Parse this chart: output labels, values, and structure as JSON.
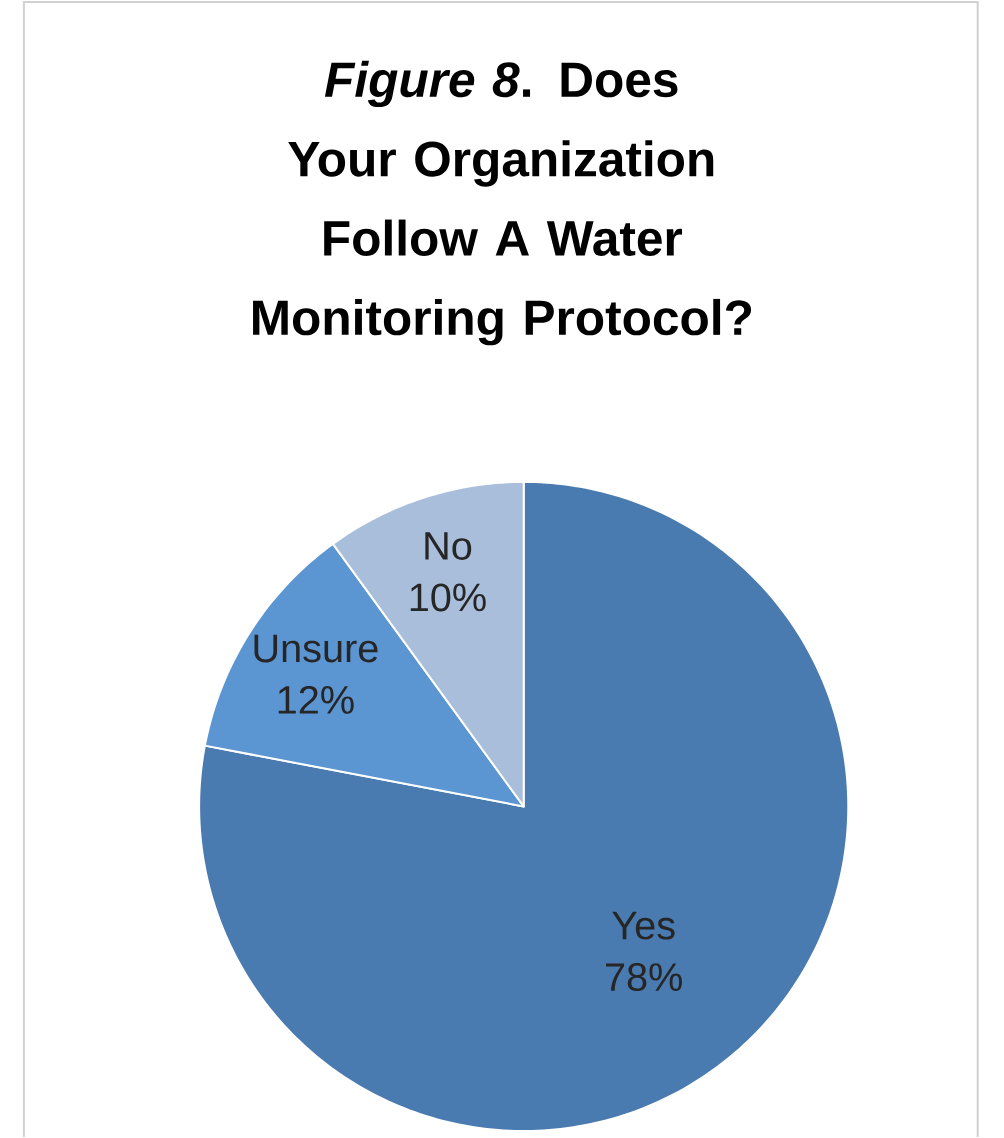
{
  "chart_data": {
    "type": "pie",
    "title": "*Figure 8*. Does Your Organization Follow A Water Monitoring Protocol?",
    "categories": [
      "Yes",
      "Unsure",
      "No"
    ],
    "values": [
      78,
      12,
      10
    ],
    "value_labels": [
      "78%",
      "12%",
      "10%"
    ],
    "colors": [
      "#4a7bb0",
      "#5b95d2",
      "#a9bedb"
    ]
  }
}
